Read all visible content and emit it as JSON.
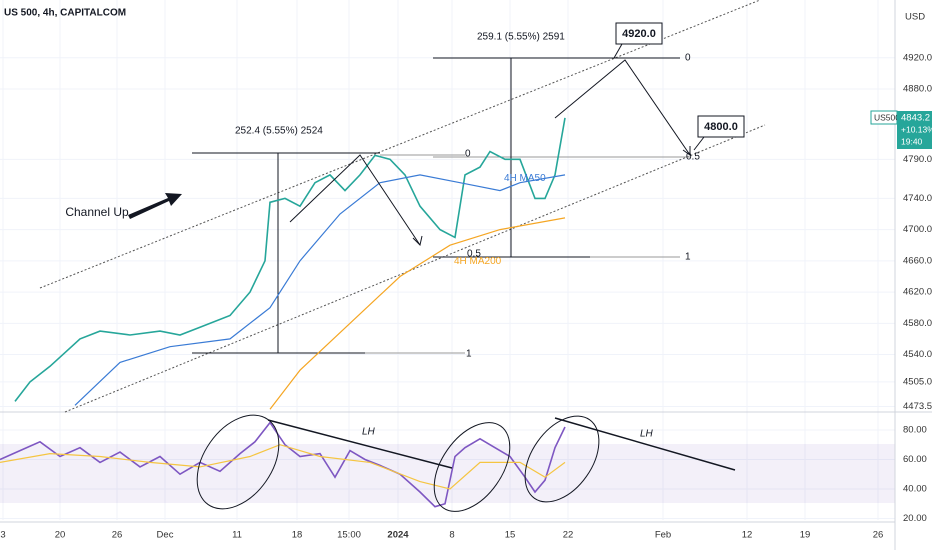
{
  "header": {
    "title": "US 500, 4h, CAPITALCOM",
    "currency": "USD"
  },
  "price_badge": {
    "price": "4843.2",
    "change": "+10.13%",
    "countdown": "19:40"
  },
  "annotations": {
    "channel": "Channel Up",
    "measure_left": "252.4 (5.55%) 2524",
    "measure_right": "259.1 (5.55%) 2591",
    "target_high": "4920.0",
    "target_low": "4800.0",
    "fib_left": [
      "0",
      "0.5",
      "1"
    ],
    "fib_right": [
      "0",
      "0.5",
      "1"
    ],
    "lh": [
      "LH",
      "LH"
    ]
  },
  "chart_data": [
    {
      "type": "line",
      "xlim": [
        0,
        895
      ],
      "xticks": [
        {
          "value": 3,
          "label": "3"
        },
        {
          "value": 60,
          "label": "20"
        },
        {
          "value": 117,
          "label": "26"
        },
        {
          "value": 165,
          "label": "Dec"
        },
        {
          "value": 237,
          "label": "11"
        },
        {
          "value": 297,
          "label": "18"
        },
        {
          "value": 349,
          "label": "15:00"
        },
        {
          "value": 398,
          "label": "2024"
        },
        {
          "value": 452,
          "label": "8"
        },
        {
          "value": 510,
          "label": "15"
        },
        {
          "value": 568,
          "label": "22"
        },
        {
          "value": 663,
          "label": "Feb"
        },
        {
          "value": 747,
          "label": "12"
        },
        {
          "value": 805,
          "label": "19"
        },
        {
          "value": 878,
          "label": "26"
        }
      ],
      "ylim": [
        4469,
        4994
      ],
      "yticks": [
        {
          "value": 4920,
          "label": "4920.0"
        },
        {
          "value": 4880,
          "label": "4880.0"
        },
        {
          "value": 4790,
          "label": "4790.0"
        },
        {
          "value": 4740,
          "label": "4740.0"
        },
        {
          "value": 4700,
          "label": "4700.0"
        },
        {
          "value": 4660,
          "label": "4660.0"
        },
        {
          "value": 4620,
          "label": "4620.0"
        },
        {
          "value": 4580,
          "label": "4580.0"
        },
        {
          "value": 4540,
          "label": "4540.0"
        },
        {
          "value": 4505,
          "label": "4505.0"
        },
        4473.5
      ],
      "series": [
        {
          "name": "US500",
          "color": "#26a69a",
          "x": [
            15,
            30,
            50,
            80,
            100,
            130,
            160,
            180,
            200,
            230,
            250,
            265,
            270,
            285,
            300,
            315,
            330,
            345,
            360,
            375,
            390,
            405,
            420,
            440,
            455,
            465,
            480,
            490,
            505,
            520,
            535,
            545,
            555,
            565
          ],
          "values": [
            4480,
            4505,
            4525,
            4560,
            4570,
            4565,
            4570,
            4565,
            4575,
            4590,
            4620,
            4660,
            4735,
            4740,
            4730,
            4760,
            4770,
            4750,
            4770,
            4795,
            4790,
            4770,
            4730,
            4700,
            4690,
            4770,
            4780,
            4800,
            4790,
            4790,
            4740,
            4740,
            4770,
            4843
          ]
        },
        {
          "name": "4H MA50",
          "color": "#3a7bd5",
          "x": [
            75,
            120,
            170,
            230,
            270,
            300,
            340,
            380,
            420,
            460,
            500,
            520,
            565
          ],
          "values": [
            4475,
            4530,
            4550,
            4560,
            4600,
            4660,
            4720,
            4760,
            4770,
            4760,
            4750,
            4760,
            4770
          ]
        },
        {
          "name": "4H MA200",
          "color": "#f5a623",
          "x": [
            270,
            300,
            350,
            400,
            450,
            500,
            565
          ],
          "values": [
            4470,
            4520,
            4580,
            4640,
            4680,
            4700,
            4715
          ]
        }
      ]
    },
    {
      "type": "line",
      "xlim": [
        0,
        895
      ],
      "ylim": [
        19,
        91.5
      ],
      "yticks": [
        {
          "value": 80,
          "label": "80.00"
        },
        {
          "value": 60,
          "label": "60.00"
        },
        {
          "value": 40,
          "label": "40.00"
        },
        {
          "value": 20,
          "label": "20.00"
        }
      ],
      "series": [
        {
          "color": "#7e57c2",
          "x": [
            0,
            20,
            40,
            60,
            80,
            100,
            120,
            140,
            160,
            180,
            200,
            220,
            240,
            255,
            270,
            285,
            300,
            320,
            335,
            350,
            365,
            380,
            400,
            420,
            435,
            445,
            455,
            465,
            480,
            495,
            510,
            525,
            535,
            545,
            555,
            565
          ],
          "values": [
            60,
            66,
            72,
            62,
            68,
            58,
            65,
            55,
            62,
            50,
            58,
            52,
            64,
            72,
            85,
            70,
            62,
            64,
            48,
            66,
            60,
            56,
            50,
            38,
            28,
            30,
            62,
            68,
            74,
            68,
            62,
            48,
            38,
            46,
            68,
            82
          ]
        },
        {
          "color": "#f5c542",
          "x": [
            0,
            50,
            100,
            150,
            200,
            250,
            280,
            320,
            370,
            420,
            450,
            480,
            520,
            545,
            565
          ],
          "values": [
            58,
            64,
            62,
            58,
            55,
            62,
            70,
            62,
            58,
            45,
            40,
            58,
            58,
            48,
            58
          ]
        }
      ]
    }
  ]
}
